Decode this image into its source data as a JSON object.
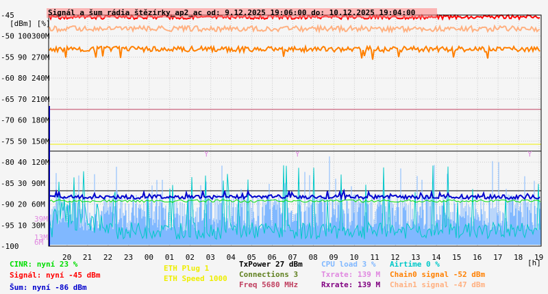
{
  "chart_data": {
    "type": "line",
    "title": "Signál a šum rádia štězírky_ap2_ac od: 9.12.2025 19:06:00 do: 10.12.2025 19:04:00",
    "y_units_label": "[dBm] [%]",
    "y_axis_dbm": {
      "min": -100,
      "max": -45,
      "ticks": [
        "-45",
        "-50",
        "-55",
        "-60",
        "-65",
        "-70",
        "-75",
        "-80",
        "-85",
        "-90",
        "-95",
        "-100"
      ]
    },
    "y_axis_pct": {
      "min": 0,
      "max": 100,
      "ticks": [
        "100",
        "90",
        "80",
        "70",
        "60",
        "50",
        "40",
        "30",
        "20",
        "10"
      ]
    },
    "y_axis_rate": {
      "ticks": [
        "300M",
        "270M",
        "240M",
        "210M",
        "180M",
        "150M",
        "120M",
        "90M",
        "60M",
        "30M"
      ]
    },
    "y_axis_extra": [
      {
        "label": "39M",
        "color": "#e088e0"
      },
      {
        "label": "13M",
        "color": "#e088e0"
      },
      {
        "label": "6M",
        "color": "#e088e0"
      }
    ],
    "x_ticks": [
      "20",
      "21",
      "22",
      "23",
      "00",
      "01",
      "02",
      "03",
      "04",
      "05",
      "06",
      "07",
      "08",
      "09",
      "10",
      "11",
      "12",
      "13",
      "14",
      "15",
      "16",
      "17",
      "18",
      "19"
    ],
    "x_unit": "[h]",
    "grid": true,
    "series": [
      {
        "name": "Signál",
        "color": "#ff0000",
        "approx_dbm": -45
      },
      {
        "name": "Chain0 signal",
        "color": "#ff8000",
        "approx_dbm": -52
      },
      {
        "name": "Chain1 signal",
        "color": "#ffb080",
        "approx_dbm": -47
      },
      {
        "name": "Šum",
        "color": "#0000cc",
        "approx_dbm": -86
      },
      {
        "name": "CINR",
        "color": "#00dd00",
        "approx_pct": 23
      },
      {
        "name": "Airtime",
        "color": "#00c8c8",
        "approx_pct": 0
      },
      {
        "name": "CPU load",
        "color": "#80b8ff",
        "approx_pct": 3
      },
      {
        "name": "TxPower",
        "color": "#000000",
        "approx_dbm": 27
      },
      {
        "name": "Freq",
        "color": "#c04060"
      },
      {
        "name": "ETH Speed",
        "color": "#eeee00"
      },
      {
        "name": "Txrate",
        "color": "#e088e0",
        "approx_mbps": 139
      },
      {
        "name": "Rxrate",
        "color": "#800080",
        "approx_mbps": 139
      }
    ]
  },
  "legend": {
    "cinr": "CINR: nyní 23 %",
    "signal": "Signál: nyní -45 dBm",
    "noise": "Šum: nyní -86 dBm",
    "eth_plug": "ETH Plug 1",
    "eth_speed": "ETH Speed 1000",
    "txpower": "TxPower 27 dBm",
    "connections": "Connections 3",
    "freq": "Freq 5680 MHz",
    "cpu": "CPU load 3 %",
    "txrate": "Txrate: 139 M",
    "rxrate": "Rxrate: 139 M",
    "airtime": "Airtime 0 %",
    "chain0": "Chain0 signal -52 dBm",
    "chain1": "Chain1 signal -47 dBm"
  },
  "colors": {
    "cinr": "#00dd00",
    "signal": "#ff0000",
    "noise": "#0000cc",
    "eth": "#eeee00",
    "txpower": "#000000",
    "connections": "#608020",
    "freq": "#c04060",
    "cpu": "#80b8ff",
    "txrate": "#e088e0",
    "rxrate": "#800080",
    "airtime": "#00c8c8",
    "chain0": "#ff8000",
    "chain1": "#ffb080"
  }
}
